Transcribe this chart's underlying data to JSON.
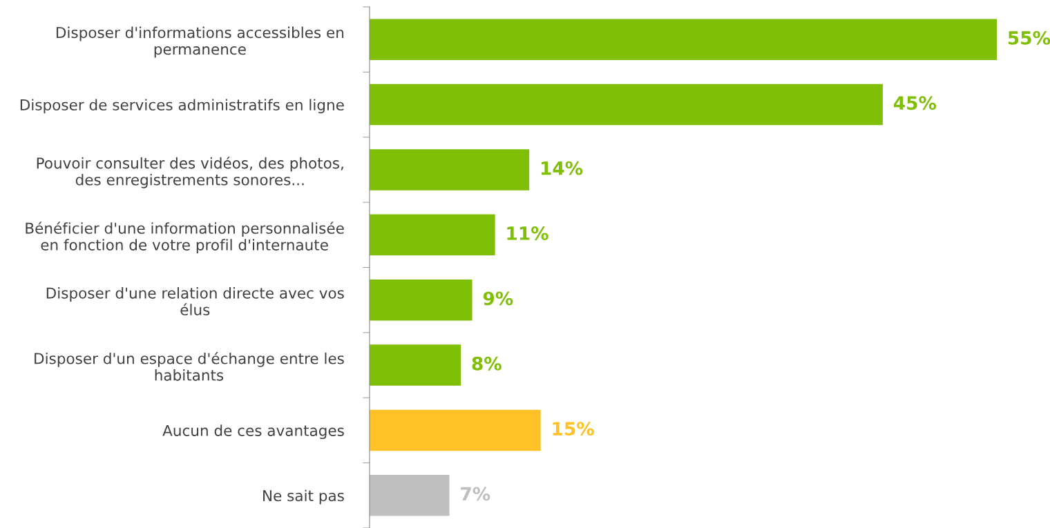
{
  "chart_data": {
    "type": "bar",
    "orientation": "horizontal",
    "categories": [
      "Disposer d'informations accessibles en\npermanence",
      "Disposer de services administratifs en ligne",
      "Pouvoir consulter des vidéos, des photos,\ndes enregistrements sonores...",
      "Bénéficier d'une information personnalisée\nen fonction de votre profil d'internaute",
      "Disposer d'une relation directe avec vos\nélus",
      "Disposer d'un espace d'échange entre les\nhabitants",
      "Aucun de ces avantages",
      "Ne sait pas"
    ],
    "values": [
      55,
      45,
      14,
      11,
      9,
      8,
      15,
      7
    ],
    "colors": [
      "#7fbf06",
      "#7fbf06",
      "#7fbf06",
      "#7fbf06",
      "#7fbf06",
      "#7fbf06",
      "#ffc125",
      "#bfbfbf"
    ],
    "value_labels": [
      "55%",
      "45%",
      "14%",
      "11%",
      "9%",
      "8%",
      "15%",
      "7%"
    ],
    "tick_labels": "y",
    "grid": false,
    "legend": false
  }
}
